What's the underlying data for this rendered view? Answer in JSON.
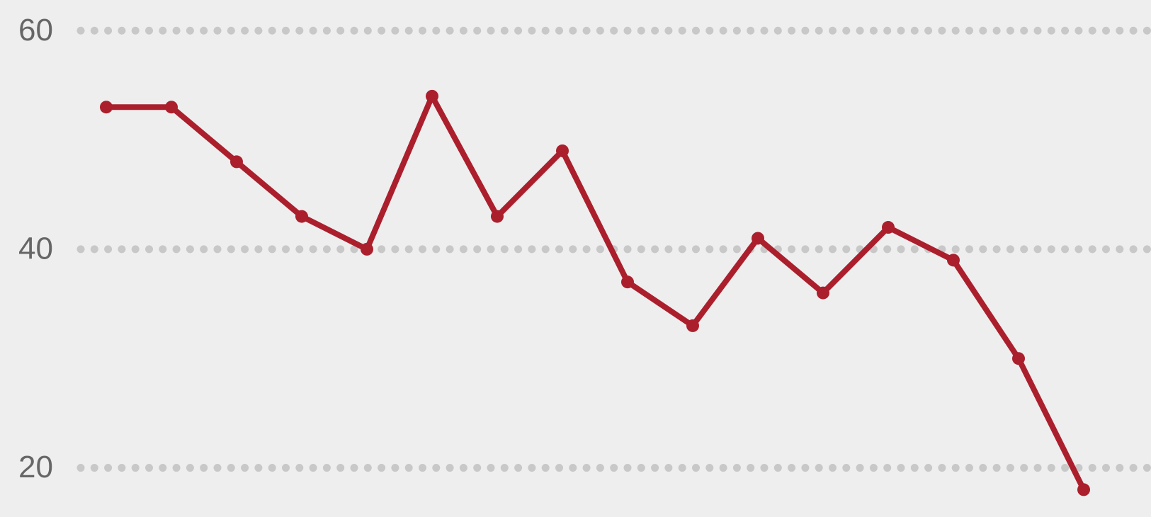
{
  "chart_data": {
    "type": "line",
    "categories": [
      null,
      null,
      null,
      null,
      null,
      null,
      null,
      null,
      null,
      null,
      null,
      null,
      null,
      null,
      null,
      null
    ],
    "series": [
      {
        "color": "#ab1f2d",
        "values": [
          53,
          53,
          48,
          43,
          40,
          54,
          43,
          49,
          37,
          33,
          41,
          36,
          42,
          39,
          30,
          18
        ]
      }
    ],
    "ylim": [
      15.5,
      62.8
    ],
    "yticks": [
      20,
      40,
      60
    ],
    "grid": true
  }
}
